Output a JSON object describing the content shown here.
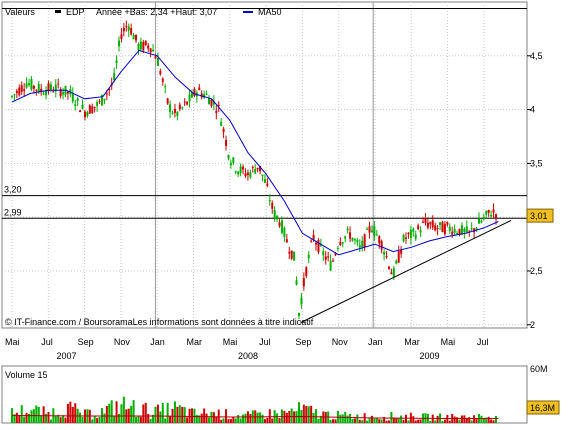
{
  "chart_data": [
    {
      "type": "candlestick",
      "legend": {
        "valeurs_label": "Valeurs",
        "ticker_label": "EDP",
        "range_text": "Année +Bas: 2,34 +Haut: 3,07",
        "ma_label": "MA50"
      },
      "colors": {
        "up": "#00b000",
        "down": "#d00000",
        "ma": "#0000cc",
        "trendline": "#000000",
        "grid": "#c8c8c8",
        "frame": "#808080",
        "last_badge": "#f0c020"
      },
      "y_ticks": [
        {
          "label": "4,5",
          "value": 4.5
        },
        {
          "label": "4",
          "value": 4.0
        },
        {
          "label": "3,5",
          "value": 3.5
        },
        {
          "label": "3",
          "value": 3.0
        },
        {
          "label": "2,5",
          "value": 2.5
        },
        {
          "label": "2",
          "value": 2.0
        }
      ],
      "ylim": [
        1.97,
        5.0
      ],
      "levels": [
        {
          "label": "3,20",
          "value": 3.2
        },
        {
          "label": "2,99",
          "value": 2.99
        }
      ],
      "top_line_value": 4.94,
      "last_value": {
        "label": "3,01",
        "value": 3.01
      },
      "month_labels": [
        "Mai",
        "Jul",
        "Sep",
        "Nov",
        "Jan",
        "Mar",
        "Mai",
        "Jul",
        "Sep",
        "Nov",
        "Jan",
        "Mar",
        "Mai",
        "Jul"
      ],
      "year_labels": [
        {
          "label": "2007",
          "month_index": 1.5
        },
        {
          "label": "2008",
          "month_index": 6.5
        },
        {
          "label": "2009",
          "month_index": 11.5
        }
      ],
      "year_separators_month_index": [
        4,
        10
      ],
      "price_path": [
        [
          0,
          4.12
        ],
        [
          0.4,
          4.25
        ],
        [
          0.8,
          4.18
        ],
        [
          1.2,
          4.2
        ],
        [
          1.6,
          4.15
        ],
        [
          2,
          3.98
        ],
        [
          2.4,
          4.05
        ],
        [
          2.8,
          4.25
        ],
        [
          3.0,
          4.7
        ],
        [
          3.2,
          4.8
        ],
        [
          3.5,
          4.58
        ],
        [
          3.8,
          4.6
        ],
        [
          4.0,
          4.48
        ],
        [
          4.3,
          4.05
        ],
        [
          4.5,
          3.95
        ],
        [
          4.8,
          4.05
        ],
        [
          5.1,
          4.18
        ],
        [
          5.4,
          4.12
        ],
        [
          5.7,
          4.0
        ],
        [
          6.0,
          3.55
        ],
        [
          6.2,
          3.45
        ],
        [
          6.5,
          3.4
        ],
        [
          6.8,
          3.48
        ],
        [
          7.0,
          3.3
        ],
        [
          7.2,
          3.05
        ],
        [
          7.4,
          2.95
        ],
        [
          7.6,
          2.75
        ],
        [
          7.8,
          2.6
        ],
        [
          7.9,
          2.1
        ],
        [
          8.1,
          2.5
        ],
        [
          8.3,
          2.82
        ],
        [
          8.5,
          2.7
        ],
        [
          8.8,
          2.55
        ],
        [
          9.0,
          2.78
        ],
        [
          9.3,
          2.85
        ],
        [
          9.6,
          2.7
        ],
        [
          9.9,
          2.92
        ],
        [
          10.2,
          2.75
        ],
        [
          10.5,
          2.45
        ],
        [
          10.8,
          2.8
        ],
        [
          11.1,
          2.85
        ],
        [
          11.4,
          2.95
        ],
        [
          11.7,
          2.9
        ],
        [
          12.0,
          2.9
        ],
        [
          12.3,
          2.88
        ],
        [
          12.6,
          2.85
        ],
        [
          12.9,
          2.95
        ],
        [
          13.2,
          3.05
        ],
        [
          13.4,
          3.03
        ]
      ],
      "ma50_path": [
        [
          0,
          4.07
        ],
        [
          0.5,
          4.15
        ],
        [
          1.0,
          4.18
        ],
        [
          1.5,
          4.18
        ],
        [
          2.0,
          4.1
        ],
        [
          2.5,
          4.12
        ],
        [
          3.0,
          4.35
        ],
        [
          3.5,
          4.55
        ],
        [
          4.0,
          4.5
        ],
        [
          4.5,
          4.3
        ],
        [
          5.0,
          4.15
        ],
        [
          5.5,
          4.1
        ],
        [
          6.0,
          3.9
        ],
        [
          6.5,
          3.6
        ],
        [
          7.0,
          3.4
        ],
        [
          7.5,
          3.15
        ],
        [
          8.0,
          2.85
        ],
        [
          8.5,
          2.75
        ],
        [
          9.0,
          2.65
        ],
        [
          9.5,
          2.7
        ],
        [
          10.0,
          2.75
        ],
        [
          10.5,
          2.68
        ],
        [
          11.0,
          2.72
        ],
        [
          11.5,
          2.78
        ],
        [
          12.0,
          2.82
        ],
        [
          12.5,
          2.85
        ],
        [
          13.0,
          2.9
        ],
        [
          13.4,
          2.96
        ]
      ],
      "support_line": {
        "from": [
          7.95,
          2.02
        ],
        "to": [
          13.75,
          2.97
        ]
      },
      "footer_text": "© IT-Finance.com / BoursoramaLes informations sont données à titre indicatif"
    },
    {
      "type": "bar",
      "title": "Volume 15",
      "ylim_label_top": "60M",
      "last_value_label": "16,3M",
      "volume_levels": [
        [
          0,
          0.22
        ],
        [
          0.5,
          0.3
        ],
        [
          1,
          0.2
        ],
        [
          1.5,
          0.35
        ],
        [
          2,
          0.18
        ],
        [
          2.5,
          0.25
        ],
        [
          3,
          0.4
        ],
        [
          3.5,
          0.3
        ],
        [
          4,
          0.25
        ],
        [
          4.5,
          0.32
        ],
        [
          5,
          0.2
        ],
        [
          5.5,
          0.22
        ],
        [
          6,
          0.18
        ],
        [
          6.5,
          0.16
        ],
        [
          7,
          0.2
        ],
        [
          7.5,
          0.22
        ],
        [
          8,
          0.3
        ],
        [
          8.5,
          0.2
        ],
        [
          9,
          0.16
        ],
        [
          9.5,
          0.15
        ],
        [
          10,
          0.14
        ],
        [
          10.5,
          0.15
        ],
        [
          11,
          0.14
        ],
        [
          11.5,
          0.13
        ],
        [
          12,
          0.13
        ],
        [
          12.5,
          0.13
        ],
        [
          13,
          0.14
        ],
        [
          13.4,
          0.18
        ]
      ],
      "ma_levels": [
        [
          0,
          0.15
        ],
        [
          2,
          0.14
        ],
        [
          4,
          0.14
        ],
        [
          6,
          0.12
        ],
        [
          8,
          0.13
        ],
        [
          10,
          0.1
        ],
        [
          12,
          0.09
        ],
        [
          13.4,
          0.09
        ]
      ]
    }
  ]
}
